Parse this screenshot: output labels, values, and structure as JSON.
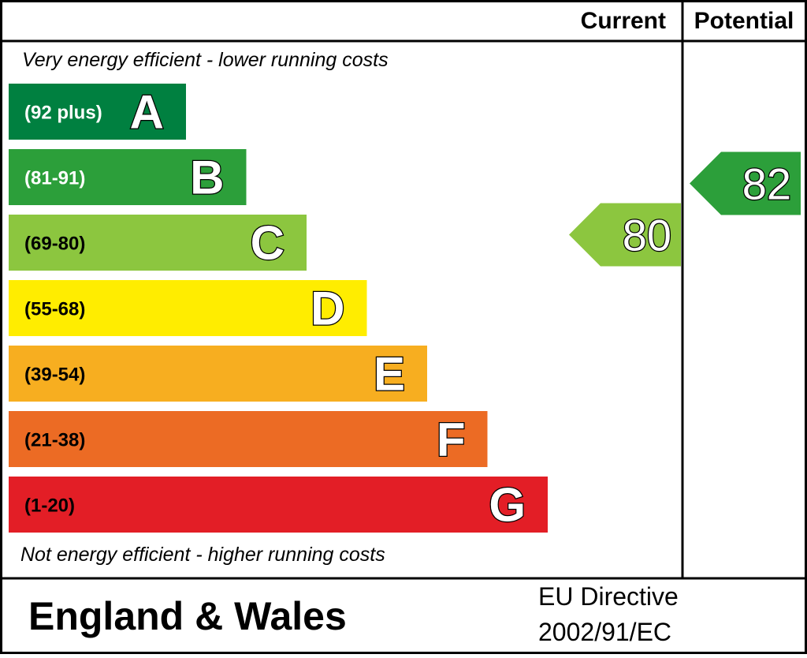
{
  "chart_data": {
    "type": "bar",
    "headers": {
      "current": "Current",
      "potential": "Potential"
    },
    "top_note": "Very energy efficient - lower running costs",
    "bottom_note": "Not energy efficient - higher running costs",
    "bands": [
      {
        "letter": "A",
        "range": "(92 plus)",
        "color": "#008040",
        "text_color": "#ffffff"
      },
      {
        "letter": "B",
        "range": "(81-91)",
        "color": "#2c9f3a",
        "text_color": "#ffffff"
      },
      {
        "letter": "C",
        "range": "(69-80)",
        "color": "#8cc63f",
        "text_color": "#000000"
      },
      {
        "letter": "D",
        "range": "(55-68)",
        "color": "#ffed00",
        "text_color": "#000000"
      },
      {
        "letter": "E",
        "range": "(39-54)",
        "color": "#f7ae20",
        "text_color": "#000000"
      },
      {
        "letter": "F",
        "range": "(21-38)",
        "color": "#ec6b24",
        "text_color": "#000000"
      },
      {
        "letter": "G",
        "range": "(1-20)",
        "color": "#e31e26",
        "text_color": "#000000"
      }
    ],
    "current": {
      "value": 80,
      "band": "C",
      "color": "#8cc63f"
    },
    "potential": {
      "value": 82,
      "band": "B",
      "color": "#2c9f3a"
    }
  },
  "footer": {
    "region": "England & Wales",
    "directive_line1": "EU Directive",
    "directive_line2": "2002/91/EC"
  }
}
